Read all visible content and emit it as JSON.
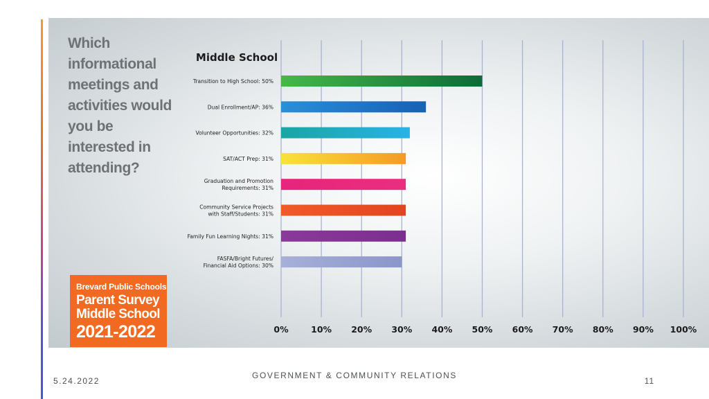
{
  "question": "Which informational meetings and activities would you be interested in attending?",
  "badge": {
    "line1": "Brevard Public Schools",
    "line2": "Parent Survey",
    "line3": "Middle School",
    "line4": "2021-2022"
  },
  "footer": {
    "date": "5.24.2022",
    "center": "GOVERNMENT & COMMUNITY RELATIONS",
    "page": "11"
  },
  "chart_data": {
    "type": "bar",
    "orientation": "horizontal",
    "title": "Middle School",
    "xlim": [
      0,
      100
    ],
    "grid": true,
    "x_ticks": [
      "0%",
      "10%",
      "20%",
      "30%",
      "40%",
      "50%",
      "60%",
      "70%",
      "80%",
      "90%",
      "100%"
    ],
    "categories": [
      "Transition to High School: 50%",
      "Dual Enrollment/AP: 36%",
      "Volunteer Opportunities: 32%",
      "SAT/ACT Prep: 31%",
      "Graduation and Promotion Requirements: 31%",
      "Community Service Projects with Staff/Students: 31%",
      "Family Fun Learning Nights: 31%",
      "FASFA/Bright Futures/ Financial Aid Options: 30%"
    ],
    "label_lines": [
      [
        "Transition to High School: 50%"
      ],
      [
        "Dual Enrollment/AP: 36%"
      ],
      [
        "Volunteer Opportunities: 32%"
      ],
      [
        "SAT/ACT Prep: 31%"
      ],
      [
        "Graduation and Promotion",
        "Requirements: 31%"
      ],
      [
        "Community Service Projects",
        "with Staff/Students: 31%"
      ],
      [
        "Family Fun Learning Nights: 31%"
      ],
      [
        "FASFA/Bright Futures/",
        "Financial Aid Options: 30%"
      ]
    ],
    "values": [
      50,
      36,
      32,
      31,
      31,
      31,
      31,
      30
    ],
    "colors": [
      [
        "#45b84a",
        "#0e6b37"
      ],
      [
        "#2a8fd8",
        "#1860b3"
      ],
      [
        "#1aa6a2",
        "#27b3e6"
      ],
      [
        "#f7e33a",
        "#f59a25"
      ],
      [
        "#e6257c",
        "#e82f7e"
      ],
      [
        "#f05a28",
        "#e2451f"
      ],
      [
        "#8a3a98",
        "#7a2f8f"
      ],
      [
        "#a7b0d8",
        "#8b96c9"
      ]
    ]
  }
}
